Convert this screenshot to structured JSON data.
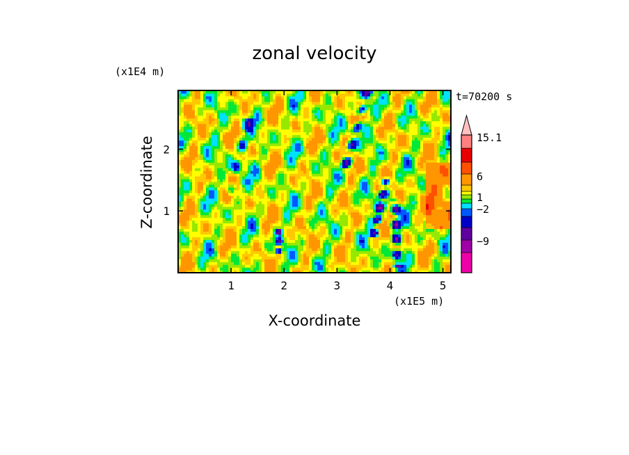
{
  "chart_data": {
    "type": "heatmap",
    "title": "zonal velocity",
    "xlabel": "X-coordinate",
    "ylabel": "Z-coordinate",
    "x_scale_label": "(x1E5 m)",
    "y_scale_label": "(x1E4 m)",
    "time_label": "t=70200 s",
    "xlim": [
      0,
      5.15
    ],
    "ylim": [
      0,
      2.95
    ],
    "x_ticks": [
      1,
      2,
      3,
      4,
      5
    ],
    "y_ticks": [
      1,
      2
    ],
    "colorbar": {
      "labels": [
        {
          "value": 15.1,
          "text": "15.1"
        },
        {
          "value": 6,
          "text": "6"
        },
        {
          "value": 1,
          "text": "1"
        },
        {
          "value": -2,
          "text": "−2"
        },
        {
          "value": -9,
          "text": "−9"
        }
      ],
      "levels": [
        {
          "color": "#ee00a8",
          "range": "< -12"
        },
        {
          "color": "#a000a8",
          "range": "-12 to -9"
        },
        {
          "color": "#6000a0",
          "range": "-9 to -6"
        },
        {
          "color": "#0000c8",
          "range": "-6 to -3"
        },
        {
          "color": "#0058ff",
          "range": "-3 to -2"
        },
        {
          "color": "#00e0ff",
          "range": "-2 to -1"
        },
        {
          "color": "#00e838",
          "range": "-1 to 0"
        },
        {
          "color": "#96e800",
          "range": "0 to 1"
        },
        {
          "color": "#ffff00",
          "range": "1 to 2"
        },
        {
          "color": "#ffc800",
          "range": "2 to 3"
        },
        {
          "color": "#ff9600",
          "range": "3 to 6"
        },
        {
          "color": "#ff5000",
          "range": "6 to 9"
        },
        {
          "color": "#e80000",
          "range": "9 to 12"
        },
        {
          "color": "#ff8080",
          "range": "12 to 15.1"
        },
        {
          "color": "#ffc0c0",
          "range": "> 15.1"
        }
      ]
    },
    "field_description": "zonal velocity contour field; values mostly -2 to 6, with negative streaks near x=1.8-2.1, 2.3-3.0 and 3.5-4.5 (x1E5 m)"
  }
}
